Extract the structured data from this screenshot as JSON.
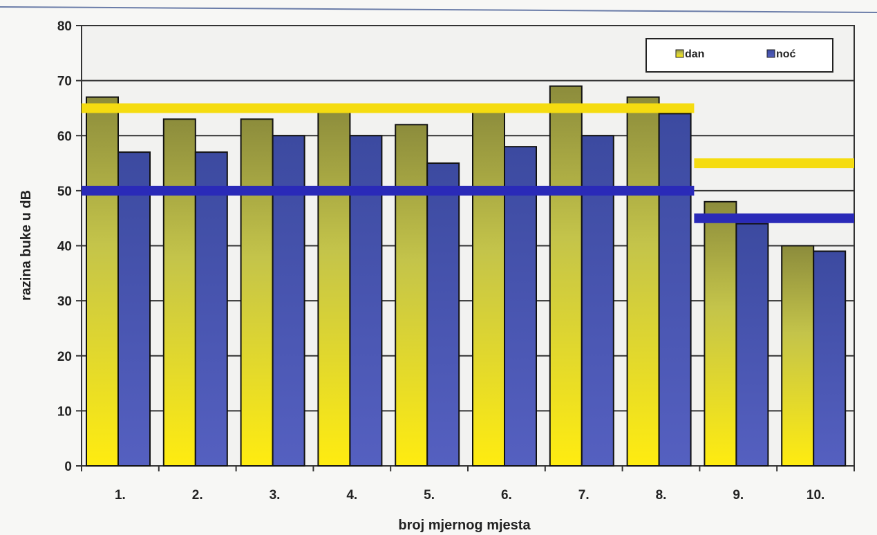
{
  "chart_data": {
    "type": "bar",
    "categories": [
      "1.",
      "2.",
      "3.",
      "4.",
      "5.",
      "6.",
      "7.",
      "8.",
      "9.",
      "10."
    ],
    "series": [
      {
        "name": "dan",
        "values": [
          67,
          63,
          63,
          65,
          62,
          65,
          69,
          67,
          48,
          40
        ],
        "color": "#e8e010"
      },
      {
        "name": "noć",
        "values": [
          57,
          57,
          60,
          60,
          55,
          58,
          60,
          64,
          44,
          39
        ],
        "color": "#4a55b0"
      }
    ],
    "reference_lines": [
      {
        "from_category": "1.",
        "to_category": "8.",
        "value": 65,
        "color": "#f5dc10"
      },
      {
        "from_category": "1.",
        "to_category": "8.",
        "value": 50,
        "color": "#2a2ab8"
      },
      {
        "from_category": "9.",
        "to_category": "10.",
        "value": 55,
        "color": "#f5dc10"
      },
      {
        "from_category": "9.",
        "to_category": "10.",
        "value": 45,
        "color": "#2a2ab8"
      }
    ],
    "xlabel": "broj mjernog mjesta",
    "ylabel": "razina buke u dB",
    "ylim": [
      0,
      80
    ],
    "yticks": [
      0,
      10,
      20,
      30,
      40,
      50,
      60,
      70,
      80
    ],
    "grid": true,
    "legend_position": "top-right"
  }
}
